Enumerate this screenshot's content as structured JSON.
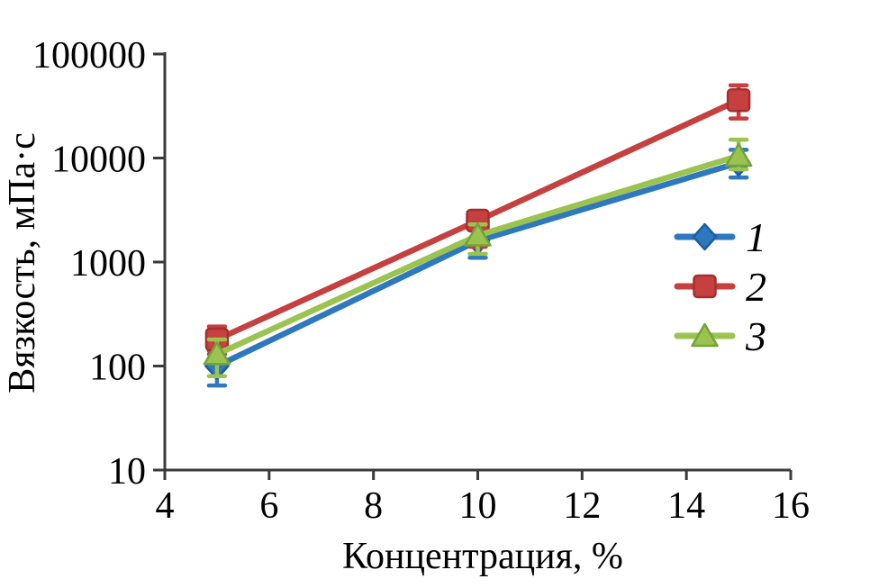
{
  "figure": {
    "background": "#ffffff",
    "axis_color": "#3a3a3a"
  },
  "chart_data": {
    "type": "line",
    "title": "",
    "xlabel": "Концентрация, %",
    "ylabel": "Вязкость, мПа·с",
    "x_scale": "linear",
    "y_scale": "log",
    "xlim": [
      4,
      16
    ],
    "ylim": [
      10,
      100000
    ],
    "grid": false,
    "x_ticks": [
      4,
      6,
      8,
      10,
      12,
      14,
      16
    ],
    "y_ticks": [
      {
        "value": 10,
        "label": "10"
      },
      {
        "value": 100,
        "label": "100"
      },
      {
        "value": 1000,
        "label": "1000"
      },
      {
        "value": 10000,
        "label": "10000"
      },
      {
        "value": 100000,
        "label": "100000"
      }
    ],
    "x": [
      5,
      10,
      15
    ],
    "series": [
      {
        "name": "1",
        "marker": "diamond",
        "color": "#2E78C0",
        "edge": "#1E5C9E",
        "values": [
          100,
          1600,
          9000
        ],
        "err_low": [
          65,
          1100,
          6500
        ],
        "err_high": [
          140,
          2100,
          12000
        ]
      },
      {
        "name": "2",
        "marker": "square",
        "color": "#C5403E",
        "edge": "#A32F2E",
        "values": [
          180,
          2500,
          36000
        ],
        "err_low": [
          130,
          1400,
          24000
        ],
        "err_high": [
          240,
          3000,
          50000
        ]
      },
      {
        "name": "3",
        "marker": "triangle",
        "color": "#9BC34F",
        "edge": "#73A33C",
        "values": [
          130,
          1800,
          10500
        ],
        "err_low": [
          80,
          1200,
          7800
        ],
        "err_high": [
          180,
          2300,
          15000
        ]
      }
    ],
    "legend": {
      "position": "right-middle",
      "entries": [
        "1",
        "2",
        "3"
      ]
    }
  }
}
